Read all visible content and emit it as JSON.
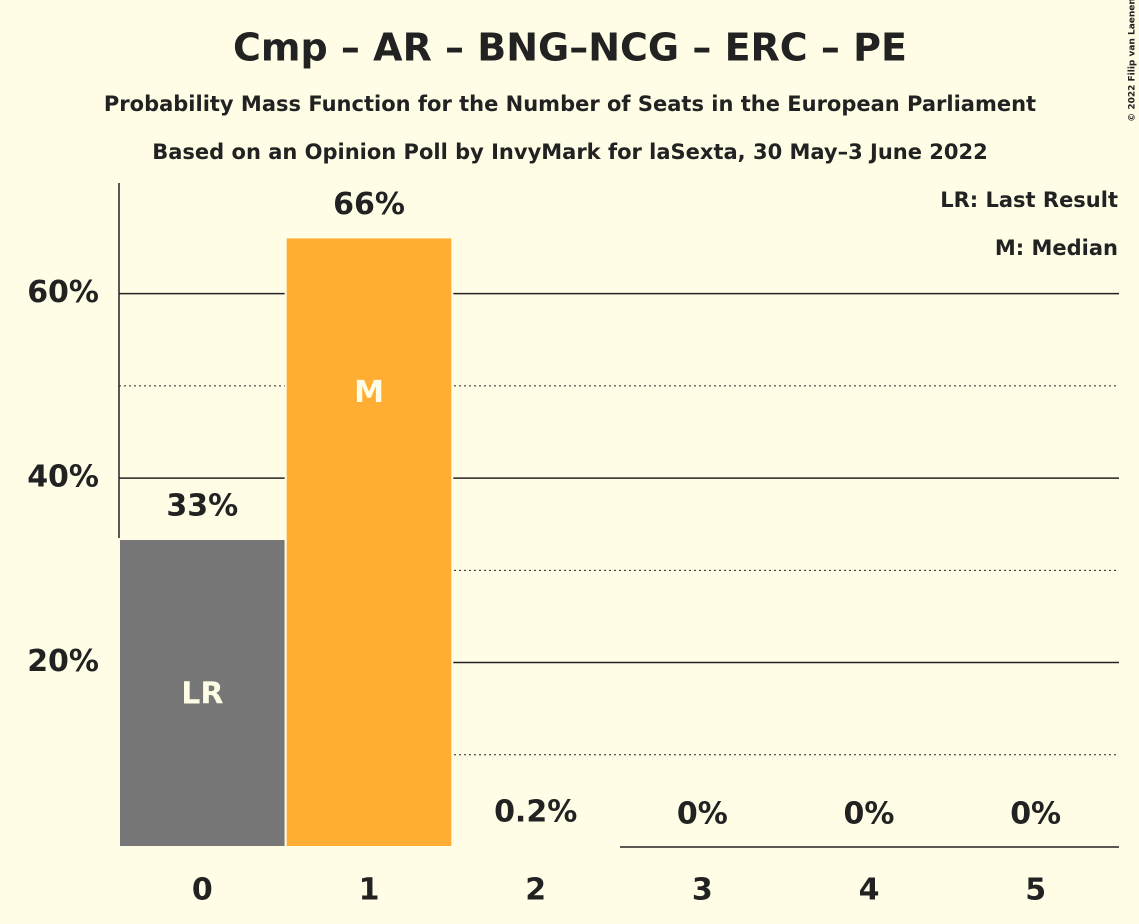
{
  "chart_data": {
    "type": "bar",
    "title": "Cmp – AR – BNG–NCG – ERC – PE",
    "subtitle": "Probability Mass Function for the Number of Seats in the European Parliament",
    "subtitle2": "Based on an Opinion Poll by InvyMark for laSexta, 30 May–3 June 2022",
    "copyright": "© 2022 Filip van Laenen",
    "legend": [
      "LR: Last Result",
      "M: Median"
    ],
    "categories": [
      "0",
      "1",
      "2",
      "3",
      "4",
      "5"
    ],
    "values": [
      33.4,
      66.1,
      0.2,
      0,
      0,
      0
    ],
    "value_labels": [
      "33%",
      "66%",
      "0.2%",
      "0%",
      "0%",
      "0%"
    ],
    "markers": [
      "LR",
      "M",
      null,
      null,
      null,
      null
    ],
    "colors": [
      "#777777",
      "#ffae33",
      "#777777",
      "#777777",
      "#777777",
      "#777777"
    ],
    "ylim": [
      0,
      72
    ],
    "yticks": [
      {
        "value": 20,
        "label": "20%"
      },
      {
        "value": 40,
        "label": "40%"
      },
      {
        "value": 60,
        "label": "60%"
      }
    ],
    "minor_grid": [
      10,
      30,
      50
    ],
    "grid": true
  }
}
